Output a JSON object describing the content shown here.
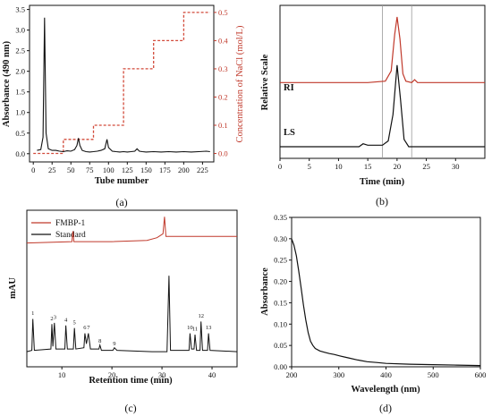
{
  "colors": {
    "black": "#111111",
    "red": "#c0392b",
    "red_dash": "#d24a3a",
    "grey_line": "#9a9a9a"
  },
  "chart_data": [
    {
      "id": "a",
      "type": "line",
      "caption": "(a)",
      "xlabel": "Tube number",
      "ylabel": "Absorbance (490 nm)",
      "ylabel_right": "Concentration of NaCl (mol/L)",
      "xlim": [
        -5,
        240
      ],
      "ylim": [
        -0.2,
        3.6
      ],
      "ylim_right": [
        -0.03,
        0.525
      ],
      "xticks": [
        0,
        25,
        50,
        75,
        100,
        125,
        150,
        175,
        200,
        225
      ],
      "yticks": [
        0.0,
        0.5,
        1.0,
        1.5,
        2.0,
        2.5,
        3.0,
        3.5
      ],
      "yticks_right": [
        0.0,
        0.1,
        0.2,
        0.3,
        0.4,
        0.5
      ],
      "series": [
        {
          "values": [
            [
              5,
              0.08
            ],
            [
              10,
              0.1
            ],
            [
              13,
              0.4
            ],
            [
              15,
              3.3
            ],
            [
              17,
              0.5
            ],
            [
              20,
              0.12
            ],
            [
              25,
              0.08
            ],
            [
              30,
              0.08
            ],
            [
              35,
              0.06
            ],
            [
              40,
              0.05
            ],
            [
              45,
              0.07
            ],
            [
              50,
              0.06
            ],
            [
              55,
              0.1
            ],
            [
              58,
              0.2
            ],
            [
              60,
              0.38
            ],
            [
              62,
              0.2
            ],
            [
              65,
              0.08
            ],
            [
              70,
              0.05
            ],
            [
              75,
              0.04
            ],
            [
              80,
              0.05
            ],
            [
              85,
              0.06
            ],
            [
              90,
              0.08
            ],
            [
              95,
              0.12
            ],
            [
              98,
              0.35
            ],
            [
              100,
              0.15
            ],
            [
              105,
              0.06
            ],
            [
              110,
              0.05
            ],
            [
              115,
              0.04
            ],
            [
              120,
              0.05
            ],
            [
              125,
              0.04
            ],
            [
              130,
              0.05
            ],
            [
              135,
              0.06
            ],
            [
              138,
              0.12
            ],
            [
              141,
              0.06
            ],
            [
              145,
              0.05
            ],
            [
              150,
              0.04
            ],
            [
              160,
              0.05
            ],
            [
              170,
              0.04
            ],
            [
              180,
              0.05
            ],
            [
              190,
              0.04
            ],
            [
              200,
              0.05
            ],
            [
              210,
              0.04
            ],
            [
              220,
              0.05
            ],
            [
              230,
              0.06
            ],
            [
              235,
              0.05
            ]
          ]
        },
        {
          "axis": "right",
          "style": "step-dashed",
          "values": [
            [
              0,
              0
            ],
            [
              40,
              0
            ],
            [
              40,
              0.05
            ],
            [
              80,
              0.05
            ],
            [
              80,
              0.1
            ],
            [
              120,
              0.1
            ],
            [
              120,
              0.2
            ],
            [
              120,
              0.2
            ],
            [
              120,
              0.3
            ],
            [
              160,
              0.3
            ],
            [
              160,
              0.4
            ],
            [
              200,
              0.4
            ],
            [
              200,
              0.5
            ],
            [
              235,
              0.5
            ]
          ]
        }
      ]
    },
    {
      "id": "b",
      "type": "line",
      "caption": "(b)",
      "xlabel": "Time (min)",
      "ylabel": "Relative Scale",
      "xlim": [
        0,
        35
      ],
      "xticks": [
        0,
        5,
        10,
        15,
        20,
        25,
        30
      ],
      "vlines": [
        17.5,
        22.5
      ],
      "series": [
        {
          "name": "RI",
          "color": "red",
          "values": [
            [
              0,
              0.52
            ],
            [
              15,
              0.52
            ],
            [
              18,
              0.53
            ],
            [
              19,
              0.6
            ],
            [
              19.6,
              0.85
            ],
            [
              20,
              0.97
            ],
            [
              20.5,
              0.82
            ],
            [
              21,
              0.58
            ],
            [
              21.5,
              0.53
            ],
            [
              22.5,
              0.52
            ],
            [
              23,
              0.54
            ],
            [
              23.5,
              0.52
            ],
            [
              35,
              0.52
            ]
          ]
        },
        {
          "name": "LS",
          "color": "black",
          "values": [
            [
              0,
              0.08
            ],
            [
              13.5,
              0.08
            ],
            [
              14.2,
              0.1
            ],
            [
              15,
              0.09
            ],
            [
              17.5,
              0.09
            ],
            [
              18.5,
              0.12
            ],
            [
              19.3,
              0.3
            ],
            [
              20,
              0.64
            ],
            [
              20.6,
              0.4
            ],
            [
              21.2,
              0.13
            ],
            [
              22,
              0.08
            ],
            [
              35,
              0.08
            ]
          ]
        }
      ]
    },
    {
      "id": "c",
      "type": "line",
      "caption": "(c)",
      "xlabel": "Retention time (min)",
      "ylabel": "mAU",
      "xlim": [
        3,
        45
      ],
      "xticks": [
        10,
        20,
        30,
        40
      ],
      "legend": [
        "FMBP-1",
        "Standard"
      ],
      "legend_position": "top-left",
      "peak_labels": [
        {
          "label": "1",
          "x": 4.2,
          "y": 0.3
        },
        {
          "label": "2",
          "x": 8.0,
          "y": 0.26
        },
        {
          "label": "3",
          "x": 8.6,
          "y": 0.27
        },
        {
          "label": "4",
          "x": 10.8,
          "y": 0.25
        },
        {
          "label": "5",
          "x": 12.5,
          "y": 0.23
        },
        {
          "label": "6",
          "x": 14.6,
          "y": 0.19
        },
        {
          "label": "7",
          "x": 15.3,
          "y": 0.19
        },
        {
          "label": "8",
          "x": 17.6,
          "y": 0.09
        },
        {
          "label": "9",
          "x": 20.5,
          "y": 0.07
        },
        {
          "label": "10",
          "x": 35.6,
          "y": 0.19
        },
        {
          "label": "11",
          "x": 36.6,
          "y": 0.18
        },
        {
          "label": "12",
          "x": 37.8,
          "y": 0.28
        },
        {
          "label": "13",
          "x": 39.3,
          "y": 0.19
        }
      ],
      "series": [
        {
          "name": "FMBP-1",
          "color": "red",
          "values": [
            [
              3,
              0.85
            ],
            [
              12,
              0.86
            ],
            [
              12.2,
              0.94
            ],
            [
              12.4,
              0.86
            ],
            [
              20,
              0.86
            ],
            [
              27,
              0.87
            ],
            [
              29,
              0.89
            ],
            [
              30.2,
              0.92
            ],
            [
              30.5,
              1.05
            ],
            [
              30.8,
              0.9
            ],
            [
              32,
              0.9
            ],
            [
              45,
              0.9
            ]
          ]
        },
        {
          "name": "Standard",
          "color": "black",
          "values": [
            [
              3,
              0.02
            ],
            [
              4,
              0.03
            ],
            [
              4.2,
              0.27
            ],
            [
              4.5,
              0.03
            ],
            [
              7.8,
              0.04
            ],
            [
              8,
              0.23
            ],
            [
              8.2,
              0.06
            ],
            [
              8.5,
              0.24
            ],
            [
              8.8,
              0.04
            ],
            [
              10.6,
              0.04
            ],
            [
              10.8,
              0.22
            ],
            [
              11.1,
              0.04
            ],
            [
              12.3,
              0.04
            ],
            [
              12.5,
              0.2
            ],
            [
              12.8,
              0.04
            ],
            [
              14.4,
              0.05
            ],
            [
              14.6,
              0.16
            ],
            [
              14.9,
              0.08
            ],
            [
              15.3,
              0.16
            ],
            [
              15.7,
              0.04
            ],
            [
              17.4,
              0.04
            ],
            [
              17.6,
              0.07
            ],
            [
              17.9,
              0.03
            ],
            [
              20.2,
              0.03
            ],
            [
              20.5,
              0.05
            ],
            [
              21,
              0.03
            ],
            [
              28,
              0.02
            ],
            [
              31,
              0.02
            ],
            [
              31.4,
              0.6
            ],
            [
              31.7,
              0.03
            ],
            [
              35.4,
              0.03
            ],
            [
              35.6,
              0.16
            ],
            [
              35.9,
              0.04
            ],
            [
              36.4,
              0.04
            ],
            [
              36.6,
              0.15
            ],
            [
              36.9,
              0.03
            ],
            [
              37.6,
              0.03
            ],
            [
              37.8,
              0.25
            ],
            [
              38.1,
              0.03
            ],
            [
              39.1,
              0.03
            ],
            [
              39.3,
              0.16
            ],
            [
              39.6,
              0.03
            ],
            [
              45,
              0.02
            ]
          ]
        }
      ]
    },
    {
      "id": "d",
      "type": "line",
      "caption": "(d)",
      "xlabel": "Wavelength (nm)",
      "ylabel": "Absorbance",
      "xlim": [
        200,
        600
      ],
      "ylim": [
        0.0,
        0.35
      ],
      "xticks": [
        200,
        300,
        400,
        500,
        600
      ],
      "yticks": [
        0.0,
        0.05,
        0.1,
        0.15,
        0.2,
        0.25,
        0.3,
        0.35
      ],
      "series": [
        {
          "values": [
            [
              200,
              0.3
            ],
            [
              205,
              0.285
            ],
            [
              210,
              0.26
            ],
            [
              215,
              0.225
            ],
            [
              220,
              0.185
            ],
            [
              225,
              0.145
            ],
            [
              230,
              0.11
            ],
            [
              235,
              0.08
            ],
            [
              240,
              0.06
            ],
            [
              245,
              0.05
            ],
            [
              250,
              0.043
            ],
            [
              260,
              0.037
            ],
            [
              270,
              0.034
            ],
            [
              280,
              0.031
            ],
            [
              290,
              0.029
            ],
            [
              300,
              0.026
            ],
            [
              320,
              0.021
            ],
            [
              340,
              0.016
            ],
            [
              360,
              0.012
            ],
            [
              380,
              0.01
            ],
            [
              400,
              0.008
            ],
            [
              450,
              0.006
            ],
            [
              500,
              0.005
            ],
            [
              550,
              0.004
            ],
            [
              600,
              0.003
            ]
          ]
        }
      ]
    }
  ]
}
